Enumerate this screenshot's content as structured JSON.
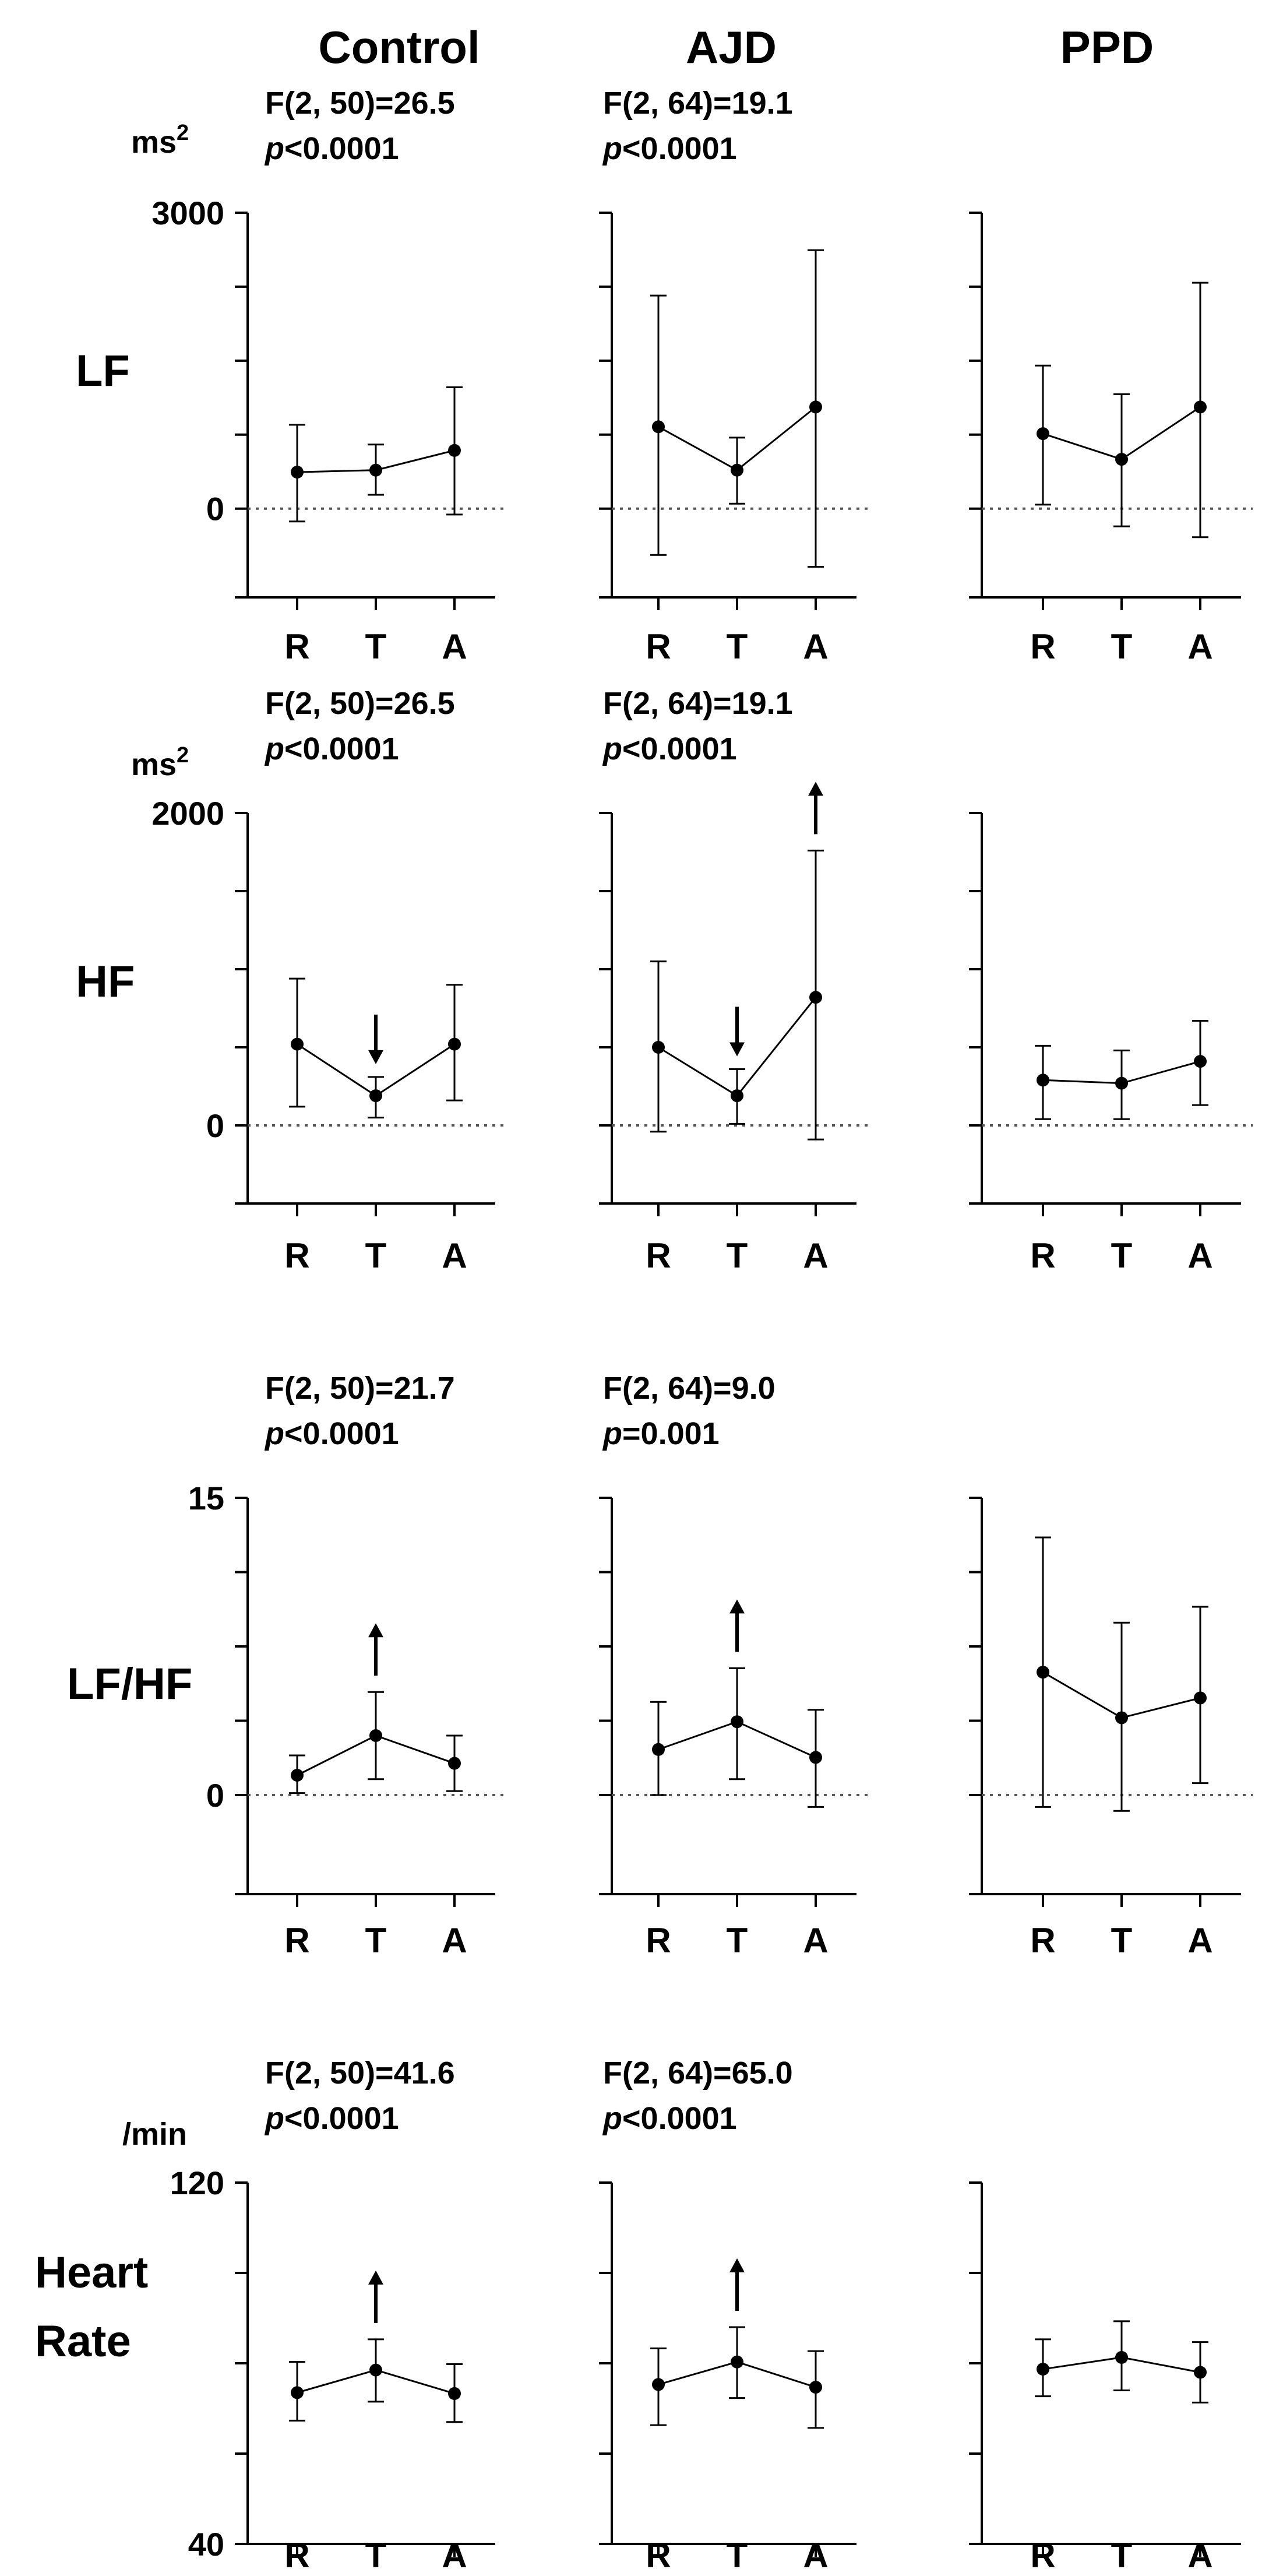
{
  "columns": [
    "Control",
    "AJD",
    "PPD"
  ],
  "chart_data": [
    {
      "type": "line",
      "row_label": "LF",
      "unit": "ms",
      "unit_sup": "2",
      "y_ticks": [
        "3000",
        "0"
      ],
      "ylim": [
        -900,
        3000
      ],
      "x_categories": [
        "R",
        "T",
        "A"
      ],
      "panels": [
        {
          "group": "Control",
          "mean": [
            370,
            390,
            590
          ],
          "lower": [
            -130,
            140,
            -60
          ],
          "upper": [
            850,
            650,
            1230
          ],
          "stat_line1": "F(2, 50)=26.5",
          "stat_p": "p",
          "stat_rest": "<0.0001",
          "arrows": []
        },
        {
          "group": "AJD",
          "mean": [
            830,
            390,
            1030
          ],
          "lower": [
            -470,
            50,
            -590
          ],
          "upper": [
            2160,
            720,
            2620
          ],
          "stat_line1": "F(2, 64)=19.1",
          "stat_p": "p",
          "stat_rest": "<0.0001",
          "arrows": []
        },
        {
          "group": "PPD",
          "mean": [
            760,
            500,
            1030
          ],
          "lower": [
            40,
            -180,
            -290
          ],
          "upper": [
            1450,
            1160,
            2290
          ],
          "arrows": []
        }
      ]
    },
    {
      "type": "line",
      "row_label": "HF",
      "unit": "ms",
      "unit_sup": "2",
      "y_ticks": [
        "2000",
        "0"
      ],
      "ylim": [
        -500,
        2000
      ],
      "x_categories": [
        "R",
        "T",
        "A"
      ],
      "panels": [
        {
          "group": "Control",
          "mean": [
            520,
            190,
            520
          ],
          "lower": [
            120,
            50,
            160
          ],
          "upper": [
            940,
            310,
            900
          ],
          "stat_line1": "F(2, 50)=26.5",
          "stat_p": "p",
          "stat_rest": "<0.0001",
          "arrows": [
            {
              "category": "T",
              "direction": "down"
            }
          ]
        },
        {
          "group": "AJD",
          "mean": [
            500,
            190,
            820
          ],
          "lower": [
            -40,
            10,
            -90
          ],
          "upper": [
            1050,
            360,
            1760
          ],
          "stat_line1": "F(2, 64)=19.1",
          "stat_p": "p",
          "stat_rest": "<0.0001",
          "arrows": [
            {
              "category": "T",
              "direction": "down"
            },
            {
              "category": "A",
              "direction": "up"
            }
          ]
        },
        {
          "group": "PPD",
          "mean": [
            290,
            270,
            410
          ],
          "lower": [
            40,
            40,
            130
          ],
          "upper": [
            510,
            480,
            670
          ],
          "arrows": []
        }
      ]
    },
    {
      "type": "line",
      "row_label": "LF/HF",
      "unit": "",
      "unit_sup": "",
      "y_ticks": [
        "15",
        "0"
      ],
      "ylim": [
        -5,
        15
      ],
      "x_categories": [
        "R",
        "T",
        "A"
      ],
      "panels": [
        {
          "group": "Control",
          "mean": [
            1.0,
            3.0,
            1.6
          ],
          "lower": [
            0.1,
            0.8,
            0.2
          ],
          "upper": [
            2.0,
            5.2,
            3.0
          ],
          "stat_line1": "F(2, 50)=21.7",
          "stat_p": "p",
          "stat_rest": "<0.0001",
          "arrows": [
            {
              "category": "T",
              "direction": "up"
            }
          ]
        },
        {
          "group": "AJD",
          "mean": [
            2.3,
            3.7,
            1.9
          ],
          "lower": [
            0.0,
            0.8,
            -0.6
          ],
          "upper": [
            4.7,
            6.4,
            4.3
          ],
          "stat_line1": "F(2, 64)=9.0",
          "stat_p": "p",
          "stat_rest": "=0.001",
          "arrows": [
            {
              "category": "T",
              "direction": "up"
            }
          ]
        },
        {
          "group": "PPD",
          "mean": [
            6.2,
            3.9,
            4.9
          ],
          "lower": [
            -0.6,
            -0.8,
            0.6
          ],
          "upper": [
            13.0,
            8.7,
            9.5
          ],
          "arrows": []
        }
      ]
    },
    {
      "type": "line",
      "row_label": "Heart Rate",
      "unit": "/min",
      "unit_sup": "",
      "y_ticks": [
        "120",
        "40"
      ],
      "ylim": [
        40,
        120
      ],
      "x_categories": [
        "R",
        "T",
        "A"
      ],
      "panels": [
        {
          "group": "Control",
          "mean": [
            73.5,
            78.5,
            73.3
          ],
          "lower": [
            67.3,
            71.5,
            67.0
          ],
          "upper": [
            80.3,
            85.3,
            79.8
          ],
          "stat_line1": "F(2, 50)=41.6",
          "stat_p": "p",
          "stat_rest": "<0.0001",
          "arrows": [
            {
              "category": "T",
              "direction": "up"
            }
          ]
        },
        {
          "group": "AJD",
          "mean": [
            75.3,
            80.3,
            74.7
          ],
          "lower": [
            66.3,
            72.3,
            65.7
          ],
          "upper": [
            83.3,
            88.0,
            82.7
          ],
          "stat_line1": "F(2, 64)=65.0",
          "stat_p": "p",
          "stat_rest": "<0.0001",
          "arrows": [
            {
              "category": "T",
              "direction": "up"
            }
          ]
        },
        {
          "group": "PPD",
          "mean": [
            78.7,
            81.3,
            78.0
          ],
          "lower": [
            72.7,
            74.0,
            71.3
          ],
          "upper": [
            85.3,
            89.3,
            84.7
          ],
          "arrows": []
        }
      ]
    }
  ]
}
